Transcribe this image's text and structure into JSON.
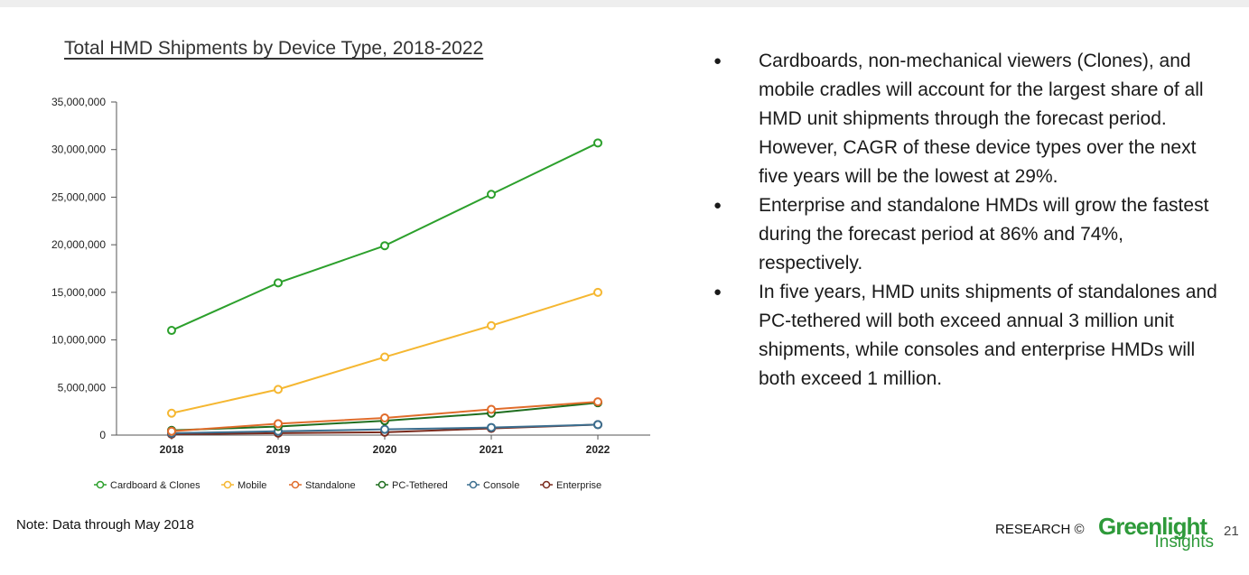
{
  "chart_data": {
    "type": "line",
    "title": "Total HMD Shipments by Device Type, 2018-2022",
    "xlabel": "",
    "ylabel": "",
    "categories": [
      "2018",
      "2019",
      "2020",
      "2021",
      "2022"
    ],
    "ylim": [
      0,
      35000000
    ],
    "yticks": [
      0,
      5000000,
      10000000,
      15000000,
      20000000,
      25000000,
      30000000,
      35000000
    ],
    "ytick_labels": [
      "0",
      "5,000,000",
      "10,000,000",
      "15,000,000",
      "20,000,000",
      "25,000,000",
      "30,000,000",
      "35,000,000"
    ],
    "grid": false,
    "legend_position": "bottom",
    "series": [
      {
        "name": "Cardboard & Clones",
        "color": "#2ca02c",
        "values": [
          11000000,
          16000000,
          19900000,
          25300000,
          30700000
        ]
      },
      {
        "name": "Mobile",
        "color": "#f5b731",
        "values": [
          2300000,
          4800000,
          8200000,
          11500000,
          15000000
        ]
      },
      {
        "name": "Standalone",
        "color": "#e06c2b",
        "values": [
          400000,
          1200000,
          1800000,
          2700000,
          3500000
        ]
      },
      {
        "name": "PC-Tethered",
        "color": "#1f6e1f",
        "values": [
          500000,
          900000,
          1500000,
          2300000,
          3400000
        ]
      },
      {
        "name": "Console",
        "color": "#3b6e8f",
        "values": [
          200000,
          400000,
          600000,
          800000,
          1100000
        ]
      },
      {
        "name": "Enterprise",
        "color": "#7a2a1c",
        "values": [
          100000,
          200000,
          300000,
          700000,
          1100000
        ]
      }
    ]
  },
  "bullets": [
    "Cardboards, non-mechanical viewers (Clones), and mobile cradles will account for the largest share of all HMD unit shipments through the forecast period. However, CAGR of these device types over the next five years will be the lowest at 29%.",
    "Enterprise and standalone HMDs will grow the fastest during the forecast period at 86% and 74%, respectively.",
    "In five years, HMD units shipments of standalones and PC-tethered will both exceed annual 3 million unit shipments, while consoles and enterprise HMDs will both exceed 1 million."
  ],
  "footer": {
    "note": "Note: Data through May 2018",
    "research": "RESEARCH ©",
    "logo_top": "Greenlight",
    "logo_bottom": "Insights",
    "page_number": "21"
  }
}
